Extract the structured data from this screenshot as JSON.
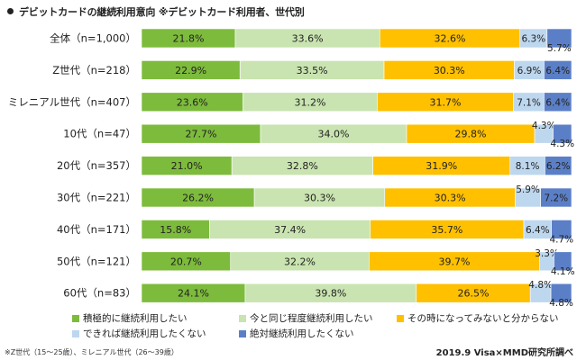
{
  "chart_data": {
    "type": "bar",
    "orientation": "horizontal",
    "stacked": true,
    "percent": true,
    "title": "デビットカードの継続利用意向 ※デビットカード利用者、世代別",
    "categories": [
      "全体（n=1,000）",
      "Z世代（n=218）",
      "ミレニアル世代（n=407）",
      "10代（n=47）",
      "20代（n=357）",
      "30代（n=221）",
      "40代（n=171）",
      "50代（n=121）",
      "60代（n=83）"
    ],
    "series": [
      {
        "name": "積極的に継続利用したい",
        "color": "#7dbb3c",
        "values": [
          21.8,
          22.9,
          23.6,
          27.7,
          21.0,
          26.2,
          15.8,
          20.7,
          24.1
        ]
      },
      {
        "name": "今と同じ程度継続利用したい",
        "color": "#c9e4b0",
        "values": [
          33.6,
          33.5,
          31.2,
          34.0,
          32.8,
          30.3,
          37.4,
          32.2,
          39.8
        ]
      },
      {
        "name": "その時になってみないと分からない",
        "color": "#ffc000",
        "values": [
          32.6,
          30.3,
          31.7,
          29.8,
          31.9,
          30.3,
          35.7,
          39.7,
          26.5
        ]
      },
      {
        "name": "できれば継続利用したくない",
        "color": "#bdd7ee",
        "values": [
          6.3,
          6.9,
          7.1,
          4.3,
          8.1,
          5.9,
          6.4,
          3.3,
          4.8
        ]
      },
      {
        "name": "絶対継続利用したくない",
        "color": "#5b7fc7",
        "values": [
          5.7,
          6.4,
          6.4,
          4.3,
          6.2,
          7.2,
          4.7,
          4.1,
          4.8
        ]
      }
    ],
    "value_labels": [
      [
        "21.8%",
        "33.6%",
        "32.6%",
        "6.3%",
        "5.7%"
      ],
      [
        "22.9%",
        "33.5%",
        "30.3%",
        "6.9%",
        "6.4%"
      ],
      [
        "23.6%",
        "31.2%",
        "31.7%",
        "7.1%",
        "6.4%"
      ],
      [
        "27.7%",
        "34.0%",
        "29.8%",
        "4.3%",
        "4.3%"
      ],
      [
        "21.0%",
        "32.8%",
        "31.9%",
        "8.1%",
        "6.2%"
      ],
      [
        "26.2%",
        "30.3%",
        "30.3%",
        "5.9%",
        "7.2%"
      ],
      [
        "15.8%",
        "37.4%",
        "35.7%",
        "6.4%",
        "4.7%"
      ],
      [
        "20.7%",
        "32.2%",
        "39.7%",
        "3.3%",
        "4.1%"
      ],
      [
        "24.1%",
        "39.8%",
        "26.5%",
        "4.8%",
        "4.8%"
      ]
    ],
    "legend_position": "bottom",
    "grid": false
  },
  "footnote": "※Z世代（15～25歳）、ミレニアル世代（26～39歳）",
  "source": "2019.9 Visa×MMD研究所調べ"
}
